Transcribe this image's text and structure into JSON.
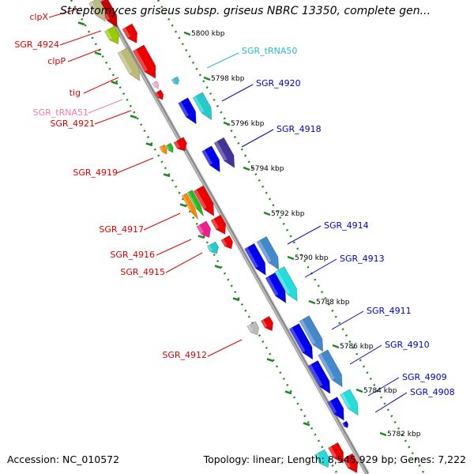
{
  "title": "Streptomyces griseus subsp. griseus NBRC 13350, complete gen...",
  "footer": {
    "accession": "Accession: NC_010572",
    "topology": "Topology: linear; Length: 8,545,929 bp; Genes: 7,222"
  },
  "ticks": [
    {
      "label": "5800 kbp",
      "pos": 5800
    },
    {
      "label": "5798 kbp",
      "pos": 5798
    },
    {
      "label": "5796 kbp",
      "pos": 5796
    },
    {
      "label": "5794 kbp",
      "pos": 5794
    },
    {
      "label": "5792 kbp",
      "pos": 5792
    },
    {
      "label": "5790 kbp",
      "pos": 5790
    },
    {
      "label": "5788 kbp",
      "pos": 5788
    },
    {
      "label": "5786 kbp",
      "pos": 5786
    },
    {
      "label": "5784 kbp",
      "pos": 5784
    },
    {
      "label": "5782 kbp",
      "pos": 5782
    }
  ],
  "left_labels": [
    {
      "text": "clpX",
      "color": "#e10000"
    },
    {
      "text": "SGR_4924",
      "color": "#e10000"
    },
    {
      "text": "clpP",
      "color": "#e10000"
    },
    {
      "text": "tig",
      "color": "#e10000"
    },
    {
      "text": "SGR_tRNA51",
      "color": "#f07aa8"
    },
    {
      "text": "SGR_4921",
      "color": "#e10000"
    },
    {
      "text": "SGR_4919",
      "color": "#e10000"
    },
    {
      "text": "SGR_4917",
      "color": "#e10000"
    },
    {
      "text": "SGR_4916",
      "color": "#e10000"
    },
    {
      "text": "SGR_4915",
      "color": "#e10000"
    },
    {
      "text": "SGR_4912",
      "color": "#e10000"
    }
  ],
  "right_labels": [
    {
      "text": "SGR_tRNA50",
      "color": "#2ab8d8"
    },
    {
      "text": "SGR_4920",
      "color": "#0000c8"
    },
    {
      "text": "SGR_4918",
      "color": "#0000c8"
    },
    {
      "text": "SGR_4914",
      "color": "#0000c8"
    },
    {
      "text": "SGR_4913",
      "color": "#0000c8"
    },
    {
      "text": "SGR_4911",
      "color": "#0000c8"
    },
    {
      "text": "SGR_4910",
      "color": "#0000c8"
    },
    {
      "text": "SGR_4909",
      "color": "#0000c8"
    },
    {
      "text": "SGR_4908",
      "color": "#0000c8"
    }
  ],
  "colors": {
    "backbone": "#8c8c8c",
    "tick_dots": "#1a8a1a",
    "forward_label": "#e10000",
    "reverse_label": "#0000c8"
  }
}
